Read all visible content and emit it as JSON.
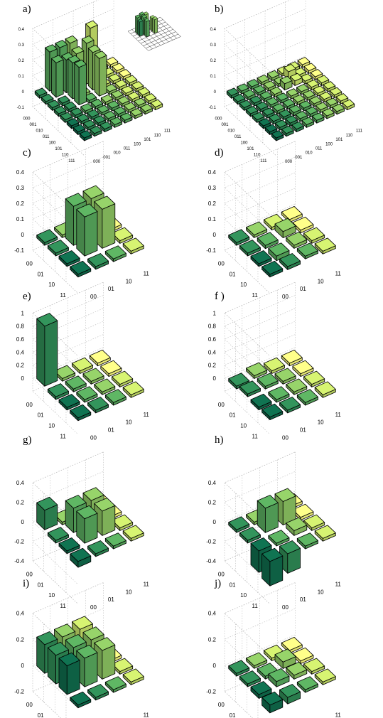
{
  "colors": {
    "ramp": [
      "#0f6b4c",
      "#2f8a55",
      "#58a95d",
      "#8cc462",
      "#c7e26a",
      "#fbfb80"
    ],
    "grid": "#b8b8b8",
    "edge": "#000000"
  },
  "chart_data": [
    {
      "type": "bar3d",
      "panel": "a)",
      "n": 8,
      "grid": true,
      "zlim": [
        -0.1,
        0.4
      ],
      "zticks": [
        "0.4",
        "0.3",
        "0.2",
        "0.1",
        "0",
        "-0.1"
      ],
      "row_labels": [
        "000",
        "001",
        "010",
        "011",
        "100",
        "101",
        "110",
        "111"
      ],
      "col_labels": [
        "000",
        "001",
        "010",
        "011",
        "100",
        "101",
        "110",
        "111"
      ],
      "bars": [
        {
          "r": 0,
          "c": 1,
          "v": 0.25
        },
        {
          "r": 0,
          "c": 2,
          "v": 0.25
        },
        {
          "r": 0,
          "c": 3,
          "v": 0.25
        },
        {
          "r": 1,
          "c": 1,
          "v": 0.22
        },
        {
          "r": 1,
          "c": 2,
          "v": 0.21
        },
        {
          "r": 1,
          "c": 3,
          "v": 0.22
        },
        {
          "r": 2,
          "c": 2,
          "v": 0.23
        },
        {
          "r": 2,
          "c": 4,
          "v": 0.24
        },
        {
          "r": 3,
          "c": 2,
          "v": 0.24
        },
        {
          "r": 3,
          "c": 4,
          "v": 0.24
        },
        {
          "r": 1,
          "c": 4,
          "v": 0.26
        },
        {
          "r": 0,
          "c": 5,
          "v": 0.29
        }
      ],
      "inset": {
        "bars": [
          {
            "r": 1,
            "c": 1,
            "v": 0.28
          },
          {
            "r": 1,
            "c": 2,
            "v": 0.3
          },
          {
            "r": 1,
            "c": 3,
            "v": 0.27
          },
          {
            "r": 2,
            "c": 1,
            "v": 0.25
          },
          {
            "r": 2,
            "c": 2,
            "v": 0.29
          },
          {
            "r": 2,
            "c": 4,
            "v": 0.22
          },
          {
            "r": 3,
            "c": 2,
            "v": 0.27
          },
          {
            "r": 3,
            "c": 4,
            "v": 0.24
          }
        ]
      }
    },
    {
      "type": "bar3d",
      "panel": "b)",
      "n": 8,
      "grid": true,
      "zlim": [
        -0.1,
        0.4
      ],
      "zticks": [
        "0.4",
        "0.3",
        "0.2",
        "0.1",
        "0",
        "-0.1"
      ],
      "row_labels": [
        "000",
        "001",
        "010",
        "011",
        "100",
        "101",
        "110",
        "111"
      ],
      "col_labels": [
        "000",
        "001",
        "010",
        "011",
        "100",
        "101",
        "110",
        "111"
      ],
      "bars": [
        {
          "r": 1,
          "c": 5,
          "v": 0.05
        },
        {
          "r": 2,
          "c": 4,
          "v": 0.04
        },
        {
          "r": 2,
          "c": 5,
          "v": 0.03
        },
        {
          "r": 4,
          "c": 2,
          "v": -0.02
        },
        {
          "r": 5,
          "c": 3,
          "v": -0.02
        },
        {
          "r": 6,
          "c": 2,
          "v": -0.02
        }
      ]
    },
    {
      "type": "bar3d",
      "panel": "c)",
      "n": 4,
      "grid": true,
      "zlim": [
        -0.1,
        0.4
      ],
      "zticks": [
        "0.4",
        "0.3",
        "0.2",
        "0.1",
        "0",
        "-0.1"
      ],
      "row_labels": [
        "00",
        "01",
        "10",
        "11"
      ],
      "col_labels": [
        "00",
        "01",
        "10",
        "11"
      ],
      "bars": [
        {
          "r": 1,
          "c": 1,
          "v": 0.25
        },
        {
          "r": 1,
          "c": 2,
          "v": 0.25
        },
        {
          "r": 2,
          "c": 1,
          "v": 0.25
        },
        {
          "r": 2,
          "c": 2,
          "v": 0.25
        }
      ]
    },
    {
      "type": "bar3d",
      "panel": "d)",
      "n": 4,
      "grid": true,
      "zlim": [
        -0.1,
        0.4
      ],
      "zticks": [
        "0.4",
        "0.3",
        "0.2",
        "0.1",
        "0",
        "-0.1"
      ],
      "row_labels": [
        "00",
        "01",
        "10",
        "11"
      ],
      "col_labels": [
        "00",
        "01",
        "10",
        "11"
      ],
      "bars": [
        {
          "r": 1,
          "c": 2,
          "v": 0.04
        },
        {
          "r": 2,
          "c": 1,
          "v": -0.03
        },
        {
          "r": 2,
          "c": 2,
          "v": 0.02
        },
        {
          "r": 3,
          "c": 1,
          "v": -0.02
        },
        {
          "r": 1,
          "c": 1,
          "v": -0.02
        },
        {
          "r": 3,
          "c": 2,
          "v": 0.01
        }
      ]
    },
    {
      "type": "bar3d",
      "panel": "e)",
      "n": 4,
      "grid": true,
      "zlim": [
        -0.2,
        1
      ],
      "zticks": [
        "1",
        "0.8",
        "0.6",
        "0.4",
        "0.2",
        "0"
      ],
      "row_labels": [
        "00",
        "01",
        "10",
        "11"
      ],
      "col_labels": [
        "00",
        "01",
        "10",
        "11"
      ],
      "bars": [
        {
          "r": 0,
          "c": 0,
          "v": 0.92
        }
      ]
    },
    {
      "type": "bar3d",
      "panel": "f )",
      "n": 4,
      "grid": true,
      "zlim": [
        -0.2,
        1
      ],
      "zticks": [
        "1",
        "0.8",
        "0.6",
        "0.4",
        "0.2",
        "0"
      ],
      "row_labels": [
        "00",
        "01",
        "10",
        "11"
      ],
      "col_labels": [
        "00",
        "01",
        "10",
        "11"
      ],
      "bars": [
        {
          "r": 0,
          "c": 1,
          "v": 0.03
        },
        {
          "r": 1,
          "c": 0,
          "v": 0.03
        },
        {
          "r": 2,
          "c": 0,
          "v": -0.04
        },
        {
          "r": 3,
          "c": 0,
          "v": -0.03
        },
        {
          "r": 1,
          "c": 1,
          "v": 0.02
        }
      ]
    },
    {
      "type": "bar3d",
      "panel": "g)",
      "n": 4,
      "grid": true,
      "zlim": [
        -0.4,
        0.4
      ],
      "zticks": [
        "0.4",
        "0.2",
        "0",
        "-0.2",
        "-0.4"
      ],
      "row_labels": [
        "00",
        "01",
        "10",
        "11"
      ],
      "col_labels": [
        "00",
        "01",
        "10",
        "11"
      ],
      "bars": [
        {
          "r": 0,
          "c": 0,
          "v": 0.2
        },
        {
          "r": 1,
          "c": 1,
          "v": 0.25
        },
        {
          "r": 1,
          "c": 2,
          "v": 0.25
        },
        {
          "r": 2,
          "c": 1,
          "v": 0.25
        },
        {
          "r": 2,
          "c": 2,
          "v": 0.25
        },
        {
          "r": 0,
          "c": 3,
          "v": -0.05
        },
        {
          "r": 3,
          "c": 0,
          "v": -0.06
        }
      ]
    },
    {
      "type": "bar3d",
      "panel": "h)",
      "n": 4,
      "grid": true,
      "zlim": [
        -0.4,
        0.4
      ],
      "zticks": [
        "0.4",
        "0.2",
        "0",
        "-0.2",
        "-0.4"
      ],
      "row_labels": [
        "00",
        "01",
        "10",
        "11"
      ],
      "col_labels": [
        "00",
        "01",
        "10",
        "11"
      ],
      "bars": [
        {
          "r": 1,
          "c": 1,
          "v": 0.25
        },
        {
          "r": 1,
          "c": 2,
          "v": 0.24
        },
        {
          "r": 2,
          "c": 0,
          "v": -0.22
        },
        {
          "r": 3,
          "c": 0,
          "v": -0.25
        },
        {
          "r": 3,
          "c": 1,
          "v": -0.2
        },
        {
          "r": 2,
          "c": 2,
          "v": 0.05
        }
      ]
    },
    {
      "type": "bar3d",
      "panel": "i)",
      "n": 4,
      "grid": true,
      "zlim": [
        -0.2,
        0.4
      ],
      "zticks": [
        "0.4",
        "0.2",
        "0",
        "-0.2"
      ],
      "row_labels": [
        "00",
        "01",
        "10",
        "11"
      ],
      "col_labels": [
        "00",
        "01",
        "10",
        "11"
      ],
      "bars": [
        {
          "r": 0,
          "c": 0,
          "v": 0.22
        },
        {
          "r": 0,
          "c": 1,
          "v": 0.22
        },
        {
          "r": 0,
          "c": 2,
          "v": 0.22
        },
        {
          "r": 1,
          "c": 0,
          "v": 0.22
        },
        {
          "r": 1,
          "c": 1,
          "v": 0.22
        },
        {
          "r": 1,
          "c": 2,
          "v": 0.22
        },
        {
          "r": 2,
          "c": 0,
          "v": 0.22
        },
        {
          "r": 2,
          "c": 1,
          "v": 0.22
        },
        {
          "r": 2,
          "c": 2,
          "v": 0.22
        }
      ]
    },
    {
      "type": "bar3d",
      "panel": "j)",
      "n": 4,
      "grid": true,
      "zlim": [
        -0.2,
        0.4
      ],
      "zticks": [
        "0.4",
        "0.2",
        "0",
        "-0.2"
      ],
      "row_labels": [
        "00",
        "01",
        "10",
        "11"
      ],
      "col_labels": [
        "00",
        "01",
        "10",
        "11"
      ],
      "bars": [
        {
          "r": 1,
          "c": 2,
          "v": 0.05
        },
        {
          "r": 2,
          "c": 1,
          "v": 0.04
        },
        {
          "r": 2,
          "c": 2,
          "v": 0.03
        },
        {
          "r": 3,
          "c": 0,
          "v": -0.06
        },
        {
          "r": 3,
          "c": 1,
          "v": -0.05
        },
        {
          "r": 2,
          "c": 0,
          "v": -0.03
        }
      ]
    }
  ]
}
